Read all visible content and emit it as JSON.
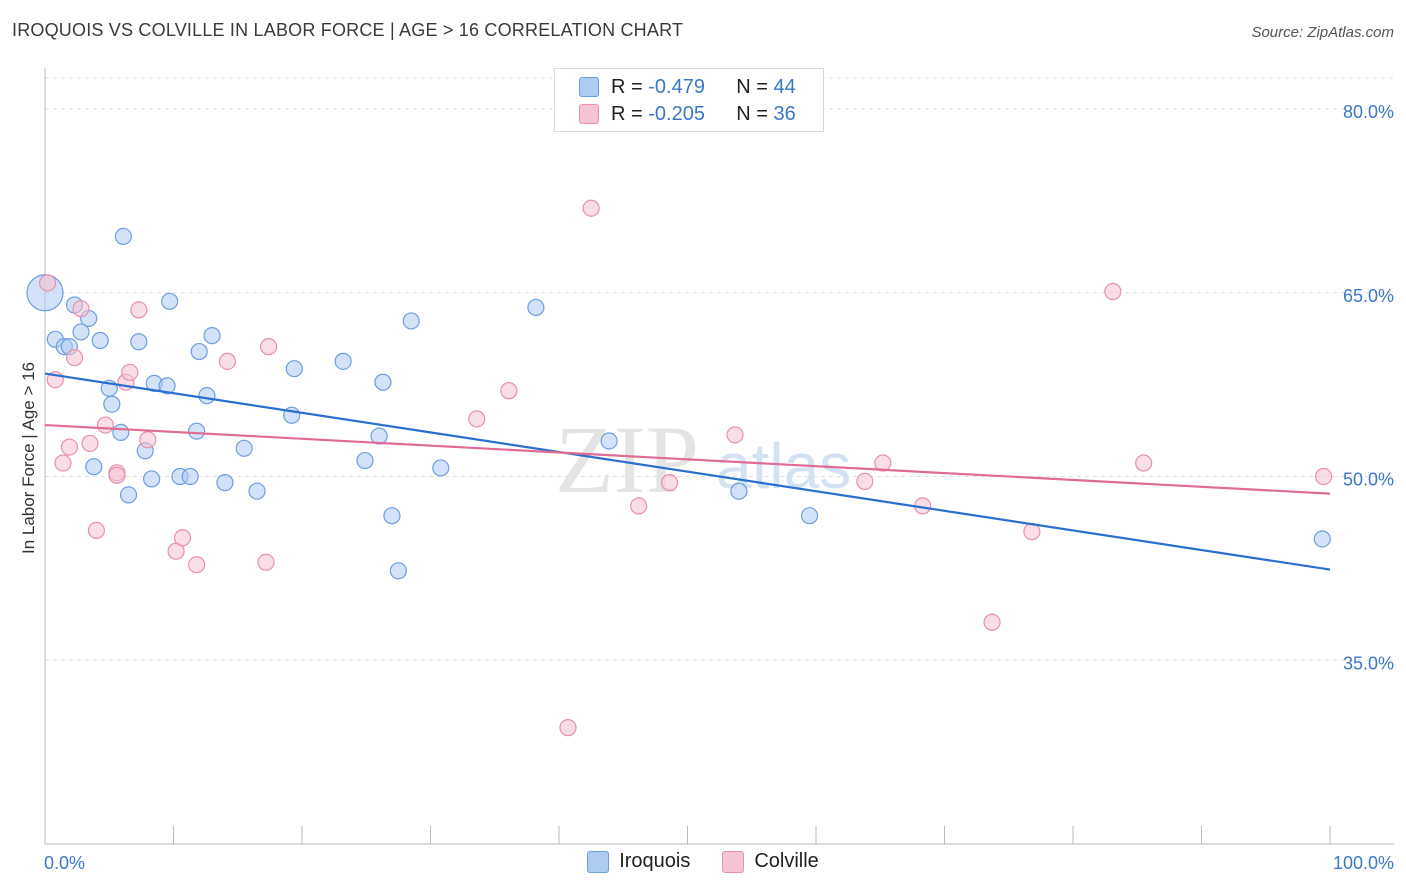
{
  "header": {
    "title": "IROQUOIS VS COLVILLE IN LABOR FORCE | AGE > 16 CORRELATION CHART",
    "source": "Source: ZipAtlas.com"
  },
  "legend_top": {
    "rows": [
      {
        "r_label": "R =",
        "r_value": "-0.479",
        "n_label": "N =",
        "n_value": "44"
      },
      {
        "r_label": "R =",
        "r_value": "-0.205",
        "n_label": "N =",
        "n_value": "36"
      }
    ]
  },
  "legend_bottom": {
    "items": [
      {
        "label": "Iroquois"
      },
      {
        "label": "Colville"
      }
    ]
  },
  "watermark": {
    "zip": "ZIP",
    "atlas": "atlas"
  },
  "colors": {
    "iroquois_fill": "#aecbf2",
    "iroquois_stroke": "#6d9edf",
    "iroquois_line": "#2a6fcf",
    "colville_fill": "#f6c3d3",
    "colville_stroke": "#e890ad",
    "colville_line": "#e06b95",
    "tick_label": "#3a78c9",
    "grid": "#dddddd"
  },
  "chart_data": {
    "type": "scatter",
    "title": "IROQUOIS VS COLVILLE IN LABOR FORCE | AGE > 16 CORRELATION CHART",
    "xlabel": "",
    "ylabel": "In Labor Force | Age > 16",
    "xlim": [
      0,
      100
    ],
    "ylim": [
      20,
      84
    ],
    "x_tick_labels": [
      "0.0%",
      "100.0%"
    ],
    "y_ticks": [
      35,
      50,
      65,
      80
    ],
    "y_tick_labels": [
      "35.0%",
      "50.0%",
      "65.0%",
      "80.0%"
    ],
    "grid": true,
    "legend_position": "top-center",
    "series": [
      {
        "name": "Iroquois",
        "r": -0.479,
        "n": 44,
        "trend": {
          "x": [
            0,
            100
          ],
          "y": [
            58.4,
            42.4
          ]
        },
        "points": [
          {
            "x": 0.0,
            "y": 65.0,
            "big": true
          },
          {
            "x": 0.8,
            "y": 61.2
          },
          {
            "x": 1.5,
            "y": 60.6
          },
          {
            "x": 1.9,
            "y": 60.6
          },
          {
            "x": 2.3,
            "y": 64.0
          },
          {
            "x": 2.8,
            "y": 61.8
          },
          {
            "x": 3.4,
            "y": 62.9
          },
          {
            "x": 3.8,
            "y": 50.8
          },
          {
            "x": 4.3,
            "y": 61.1
          },
          {
            "x": 5.0,
            "y": 57.2
          },
          {
            "x": 5.2,
            "y": 55.9
          },
          {
            "x": 5.9,
            "y": 53.6
          },
          {
            "x": 6.1,
            "y": 69.6
          },
          {
            "x": 6.5,
            "y": 48.5
          },
          {
            "x": 7.3,
            "y": 61.0
          },
          {
            "x": 7.8,
            "y": 52.1
          },
          {
            "x": 8.5,
            "y": 57.6
          },
          {
            "x": 8.3,
            "y": 49.8
          },
          {
            "x": 9.5,
            "y": 57.4
          },
          {
            "x": 9.7,
            "y": 64.3
          },
          {
            "x": 10.5,
            "y": 50.0
          },
          {
            "x": 11.3,
            "y": 50.0
          },
          {
            "x": 11.8,
            "y": 53.7
          },
          {
            "x": 12.0,
            "y": 60.2
          },
          {
            "x": 12.6,
            "y": 56.6
          },
          {
            "x": 13.0,
            "y": 61.5
          },
          {
            "x": 14.0,
            "y": 49.5
          },
          {
            "x": 15.5,
            "y": 52.3
          },
          {
            "x": 16.5,
            "y": 48.8
          },
          {
            "x": 19.2,
            "y": 55.0
          },
          {
            "x": 19.4,
            "y": 58.8
          },
          {
            "x": 23.2,
            "y": 59.4
          },
          {
            "x": 24.9,
            "y": 51.3
          },
          {
            "x": 26.0,
            "y": 53.3
          },
          {
            "x": 26.3,
            "y": 57.7
          },
          {
            "x": 27.0,
            "y": 46.8
          },
          {
            "x": 27.5,
            "y": 42.3
          },
          {
            "x": 28.5,
            "y": 62.7
          },
          {
            "x": 30.8,
            "y": 50.7
          },
          {
            "x": 38.2,
            "y": 63.8
          },
          {
            "x": 43.9,
            "y": 52.9
          },
          {
            "x": 54.0,
            "y": 48.8
          },
          {
            "x": 59.5,
            "y": 46.8
          },
          {
            "x": 99.4,
            "y": 44.9
          }
        ]
      },
      {
        "name": "Colville",
        "r": -0.205,
        "n": 36,
        "trend": {
          "x": [
            0,
            100
          ],
          "y": [
            54.2,
            48.6
          ]
        },
        "points": [
          {
            "x": 0.2,
            "y": 65.8
          },
          {
            "x": 0.8,
            "y": 57.9
          },
          {
            "x": 1.4,
            "y": 51.1
          },
          {
            "x": 1.9,
            "y": 52.4
          },
          {
            "x": 2.3,
            "y": 59.7
          },
          {
            "x": 2.8,
            "y": 63.7
          },
          {
            "x": 3.5,
            "y": 52.7
          },
          {
            "x": 4.0,
            "y": 45.6
          },
          {
            "x": 4.7,
            "y": 54.2
          },
          {
            "x": 5.6,
            "y": 50.3
          },
          {
            "x": 5.6,
            "y": 50.1
          },
          {
            "x": 6.3,
            "y": 57.7
          },
          {
            "x": 6.6,
            "y": 58.5
          },
          {
            "x": 7.3,
            "y": 63.6
          },
          {
            "x": 8.0,
            "y": 53.0
          },
          {
            "x": 10.2,
            "y": 43.9
          },
          {
            "x": 10.7,
            "y": 45.0
          },
          {
            "x": 11.8,
            "y": 42.8
          },
          {
            "x": 14.2,
            "y": 59.4
          },
          {
            "x": 17.2,
            "y": 43.0
          },
          {
            "x": 17.4,
            "y": 60.6
          },
          {
            "x": 33.6,
            "y": 54.7
          },
          {
            "x": 36.1,
            "y": 57.0
          },
          {
            "x": 40.7,
            "y": 29.5
          },
          {
            "x": 42.5,
            "y": 71.9
          },
          {
            "x": 46.2,
            "y": 47.6
          },
          {
            "x": 48.6,
            "y": 49.5
          },
          {
            "x": 53.7,
            "y": 53.4
          },
          {
            "x": 63.8,
            "y": 49.6
          },
          {
            "x": 65.2,
            "y": 51.1
          },
          {
            "x": 68.3,
            "y": 47.6
          },
          {
            "x": 73.7,
            "y": 38.1
          },
          {
            "x": 76.8,
            "y": 45.5
          },
          {
            "x": 83.1,
            "y": 65.1
          },
          {
            "x": 85.5,
            "y": 51.1
          },
          {
            "x": 99.5,
            "y": 50.0
          }
        ]
      }
    ]
  }
}
